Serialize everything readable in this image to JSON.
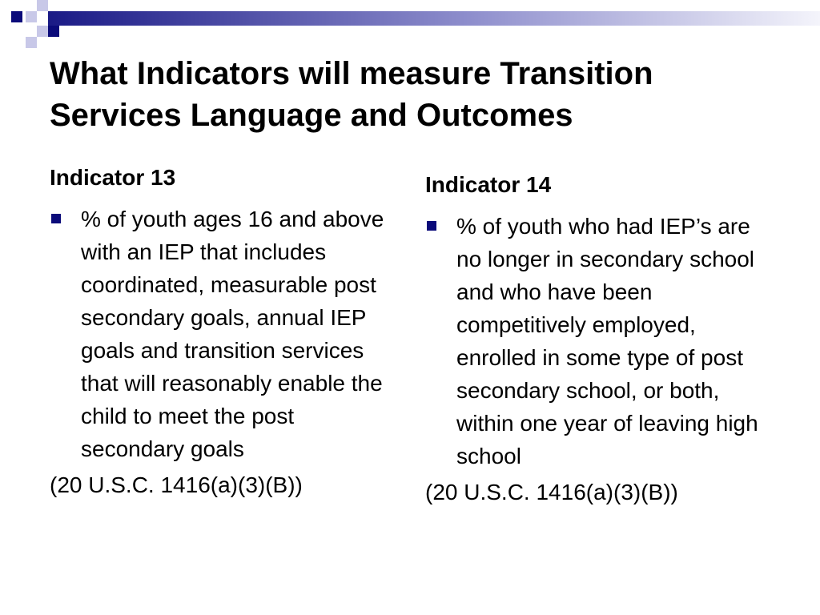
{
  "title": "What Indicators will measure Transition Services Language and Outcomes",
  "left_column": {
    "heading": "Indicator 13",
    "bullet_text": "% of youth ages 16 and above with an IEP that includes coordinated, measurable post secondary goals, annual IEP goals and transition services that will reasonably enable the child to meet the post secondary goals",
    "citation": "(20 U.S.C. 1416(a)(3)(B))"
  },
  "right_column": {
    "heading": "Indicator 14",
    "bullet_text": "% of youth who had IEP’s are no longer in secondary school and who have been competitively employed, enrolled in some type of post secondary school, or both, within one year of leaving high school",
    "citation": "(20 U.S.C. 1416(a)(3)(B))"
  },
  "colors": {
    "accent_dark": "#0b0b7a",
    "accent_mid": "#7a7ac4",
    "accent_light": "#c8c8e8",
    "text": "#000000",
    "background": "#ffffff"
  }
}
